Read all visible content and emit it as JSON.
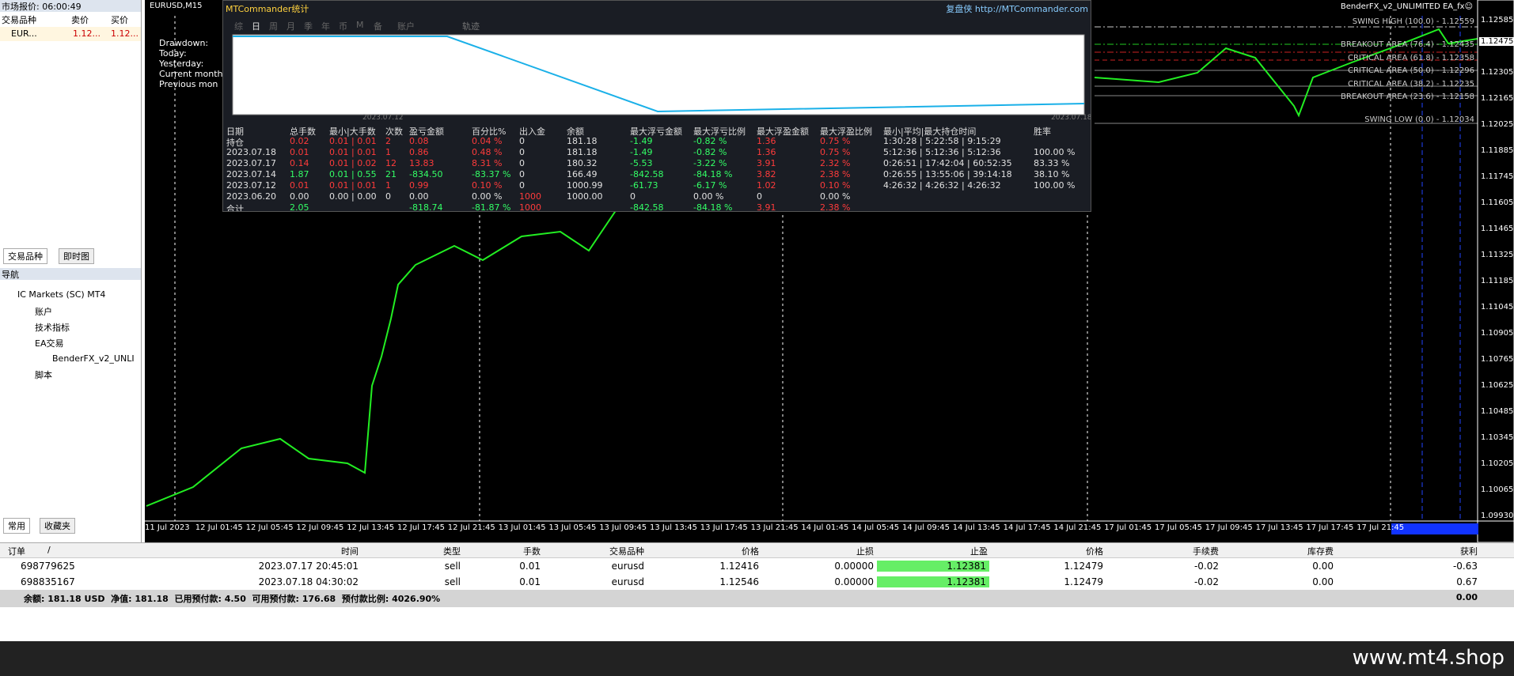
{
  "market_watch": {
    "title": "市场报价: 06:00:49",
    "columns": [
      "交易品种",
      "卖价",
      "买价"
    ],
    "rows": [
      [
        "EUR...",
        "1.12...",
        "1.12..."
      ]
    ],
    "tabs": [
      "交易品种",
      "即时图"
    ]
  },
  "navigator": {
    "title": "导航",
    "items": [
      "IC Markets (SC) MT4",
      "账户",
      "技术指标",
      "EA交易",
      "BenderFX_v2_UNLI",
      "脚本"
    ],
    "tabs": [
      "常用",
      "收藏夹"
    ]
  },
  "chart": {
    "title": "EURUSD,M15",
    "ea": "BenderFX_v2_UNLIMITED EA_fx☺",
    "current_price": "1.12475",
    "price_labels": [
      "1.12585",
      "1.12305",
      "1.12165",
      "1.12025",
      "1.11885",
      "1.11745",
      "1.11605",
      "1.11465",
      "1.11325",
      "1.11185",
      "1.11045",
      "1.10905",
      "1.10765",
      "1.10625",
      "1.10485",
      "1.10345",
      "1.10205",
      "1.10065",
      "1.09930"
    ],
    "time_labels": [
      "11 Jul 2023",
      "12 Jul 01:45",
      "12 Jul 05:45",
      "12 Jul 09:45",
      "12 Jul 13:45",
      "12 Jul 17:45",
      "12 Jul 21:45",
      "13 Jul 01:45",
      "13 Jul 05:45",
      "13 Jul 09:45",
      "13 Jul 13:45",
      "13 Jul 17:45",
      "13 Jul 21:45",
      "14 Jul 01:45",
      "14 Jul 05:45",
      "14 Jul 09:45",
      "14 Jul 13:45",
      "14 Jul 17:45",
      "14 Jul 21:45",
      "17 Jul 01:45",
      "17 Jul 05:45",
      "17 Jul 09:45",
      "17 Jul 13:45",
      "17 Jul 17:45",
      "17 Jul 21:45"
    ],
    "fib_labels": [
      "SWING HIGH (100.0) - 1.12559",
      "BREAKOUT AREA (76.4) - 1.12435",
      "CRITICAL AREA (61.8) - 1.12358",
      "CRITICAL AREA (50.0) - 1.12296",
      "CRITICAL AREA (38.2) - 1.12235",
      "BREAKOUT AREA (23.6) - 1.12158",
      "SWING LOW (0.0) - 1.12034"
    ],
    "overlay": [
      "Drawdown:",
      "Today:",
      "Yesterday:",
      "Current month",
      "Previous mon"
    ]
  },
  "stats": {
    "title": "MTCommander统计",
    "link": "复盘侠 http://MTCommander.com",
    "tabs": [
      "综",
      "日",
      "周",
      "月",
      "季",
      "年",
      "币",
      "M",
      "备",
      "账户"
    ],
    "track": "轨迹",
    "start_date": "2023.07.12",
    "end_date": "2023.07.18",
    "columns": [
      "日期",
      "总手数",
      "最小|大手数",
      "次数",
      "盈亏金额",
      "百分比%",
      "出入金",
      "余额",
      "最大浮亏金额",
      "最大浮亏比例",
      "最大浮盈金额",
      "最大浮盈比例",
      "最小|平均|最大持仓时间",
      "胜率"
    ],
    "rows": [
      {
        "tone": "#ff3b3b",
        "cells": [
          "持仓",
          "0.02",
          "0.01 | 0.01",
          "2",
          "0.08",
          "0.04 %",
          "0",
          "181.18",
          "-1.49",
          "-0.82 %",
          "1.36",
          "0.75 %",
          "1:30:28 | 5:22:58 | 9:15:29",
          ""
        ]
      },
      {
        "tone": "#ff3b3b",
        "cells": [
          "2023.07.18",
          "0.01",
          "0.01 | 0.01",
          "1",
          "0.86",
          "0.48 %",
          "0",
          "181.18",
          "-1.49",
          "-0.82 %",
          "1.36",
          "0.75 %",
          "5:12:36 | 5:12:36 | 5:12:36",
          "100.00 %"
        ]
      },
      {
        "tone": "#ff3b3b",
        "cells": [
          "2023.07.17",
          "0.14",
          "0.01 | 0.02",
          "12",
          "13.83",
          "8.31 %",
          "0",
          "180.32",
          "-5.53",
          "-3.22 %",
          "3.91",
          "2.32 %",
          "0:26:51 | 17:42:04 | 60:52:35",
          "83.33 %"
        ]
      },
      {
        "tone": "#33ff66",
        "cells": [
          "2023.07.14",
          "1.87",
          "0.01 | 0.55",
          "21",
          "-834.50",
          "-83.37 %",
          "0",
          "166.49",
          "-842.58",
          "-84.18 %",
          "3.82",
          "2.38 %",
          "0:26:55 | 13:55:06 | 39:14:18",
          "38.10 %"
        ]
      },
      {
        "tone": "#ff3b3b",
        "cells": [
          "2023.07.12",
          "0.01",
          "0.01 | 0.01",
          "1",
          "0.99",
          "0.10 %",
          "0",
          "1000.99",
          "-61.73",
          "-6.17 %",
          "1.02",
          "0.10 %",
          "4:26:32 | 4:26:32 | 4:26:32",
          "100.00 %"
        ]
      },
      {
        "tone": "#e0e0e0",
        "cells": [
          "2023.06.20",
          "0.00",
          "0.00 | 0.00",
          "0",
          "0.00",
          "0.00 %",
          "1000",
          "1000.00",
          "0",
          "0.00 %",
          "0",
          "0.00 %",
          "",
          ""
        ]
      },
      {
        "tone": "#33ff66",
        "cells": [
          "合计",
          "2.05",
          "",
          "",
          "-818.74",
          "-81.87 %",
          "1000",
          "",
          "-842.58",
          "-84.18 %",
          "3.91",
          "2.38 %",
          "",
          ""
        ]
      }
    ]
  },
  "terminal": {
    "columns": [
      "订单",
      "/",
      "时间",
      "类型",
      "手数",
      "交易品种",
      "价格",
      "止损",
      "止盈",
      "价格",
      "手续费",
      "库存费",
      "获利"
    ],
    "rows": [
      [
        "698779625",
        "2023.07.17 20:45:01",
        "sell",
        "0.01",
        "eurusd",
        "1.12416",
        "0.00000",
        "1.12381",
        "1.12479",
        "-0.02",
        "0.00",
        "-0.63"
      ],
      [
        "698835167",
        "2023.07.18 04:30:02",
        "sell",
        "0.01",
        "eurusd",
        "1.12546",
        "0.00000",
        "1.12381",
        "1.12479",
        "-0.02",
        "0.00",
        "0.67"
      ]
    ],
    "summary": "余额: 181.18 USD  净值: 181.18  已用预付款: 4.50  可用预付款: 176.68  预付款比例: 4026.90%",
    "total": "0.00"
  },
  "watermark": "www.mt4.shop"
}
